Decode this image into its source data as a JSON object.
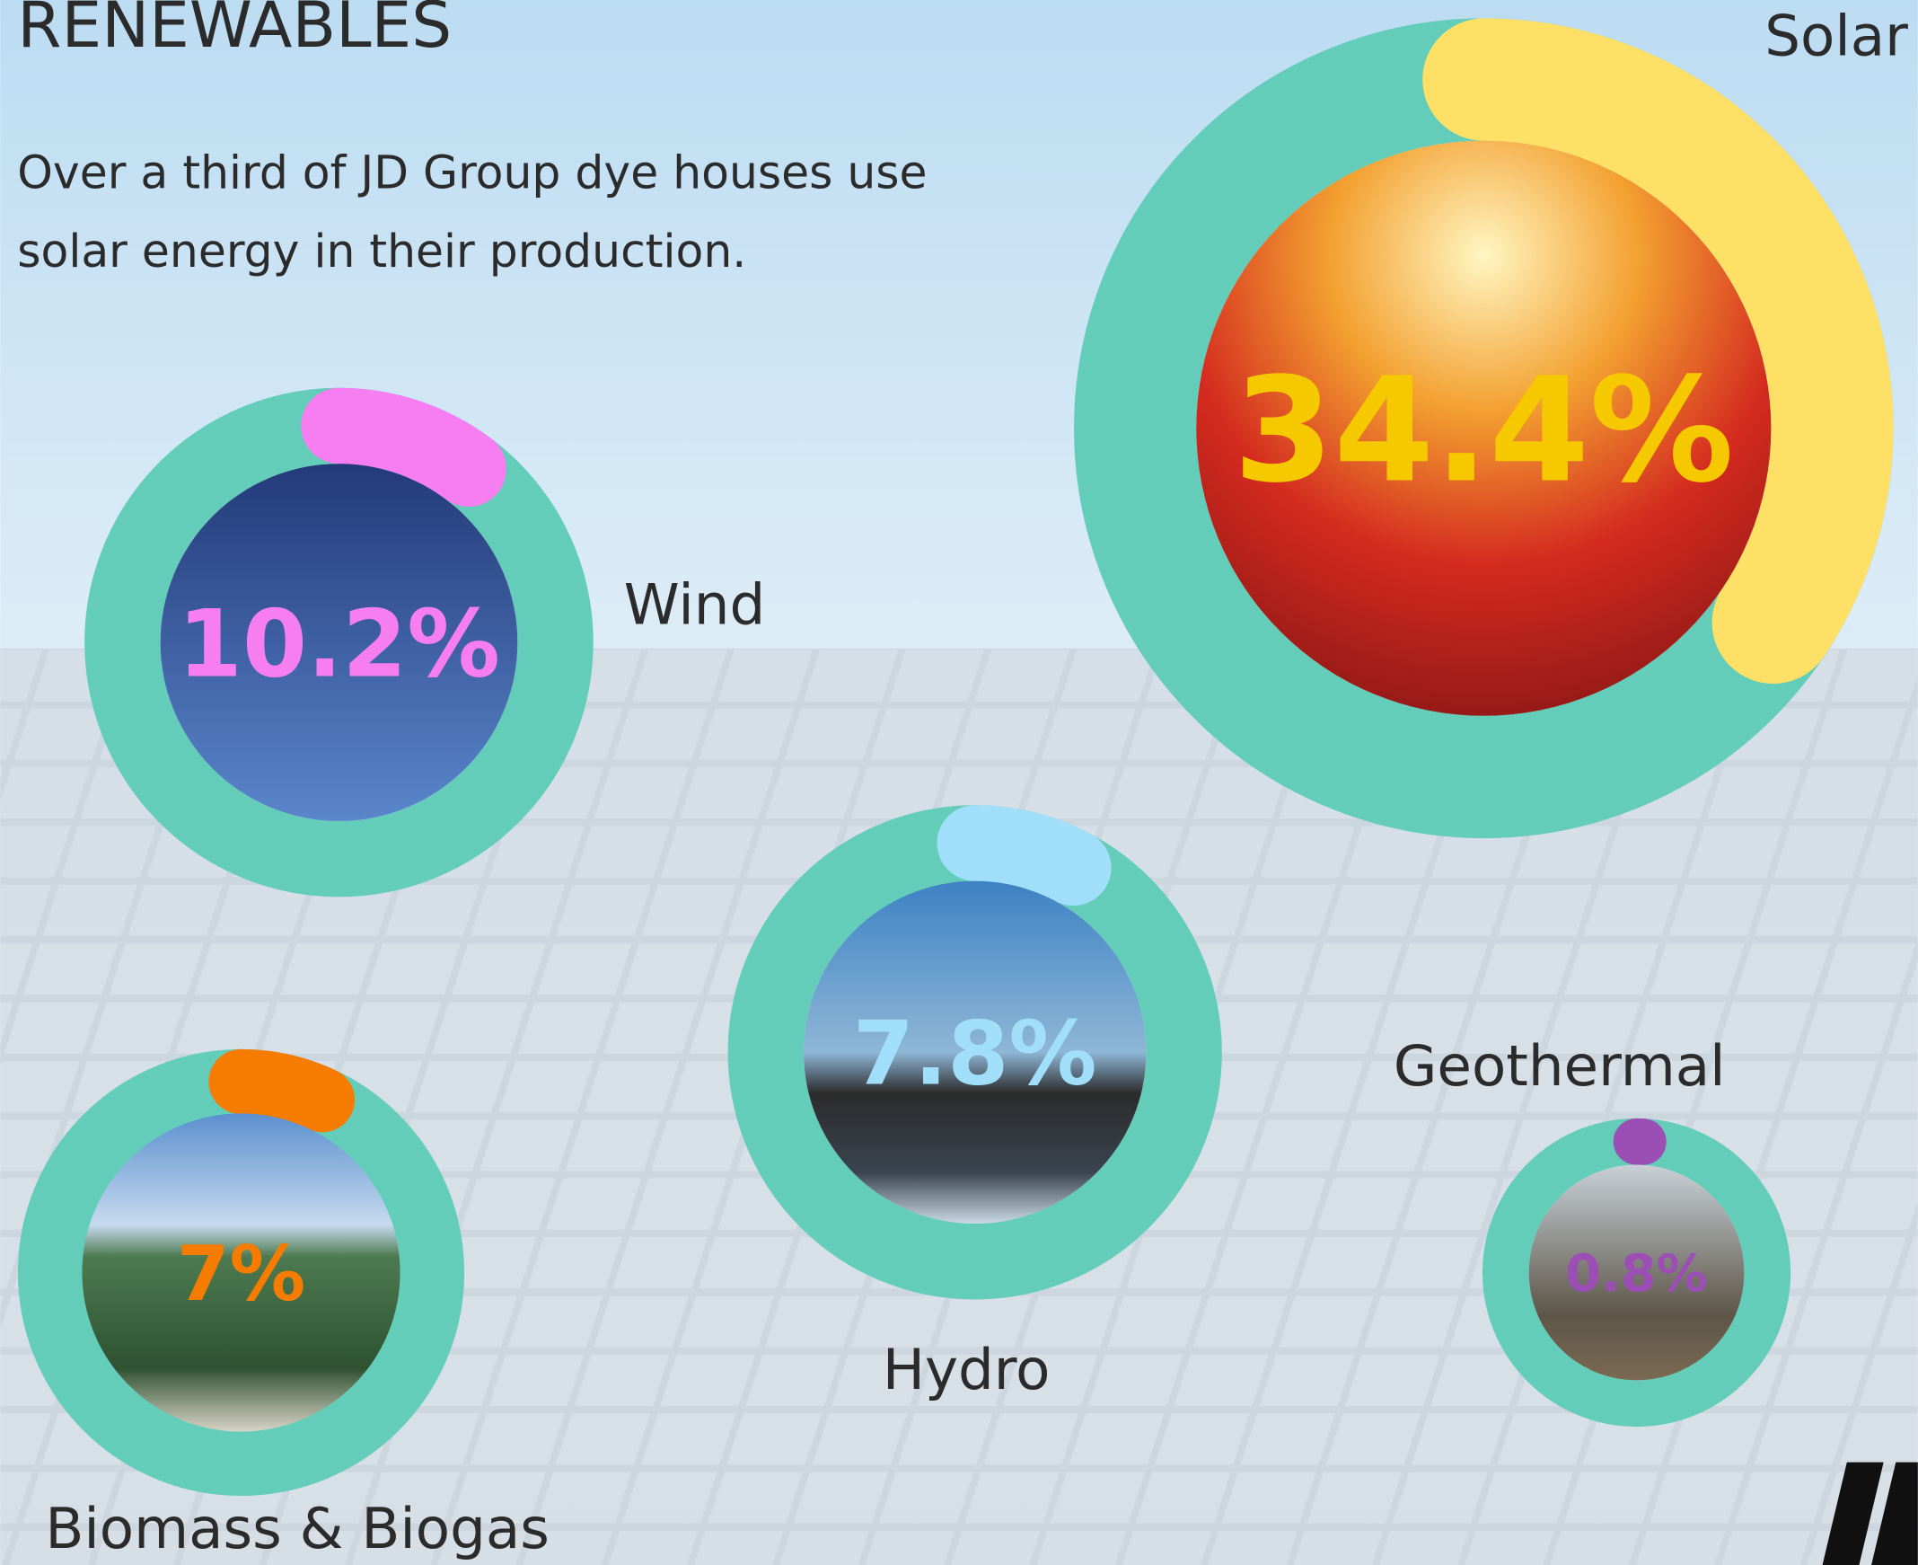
{
  "chart_data": {
    "type": "radial-progress",
    "title": "RENEWABLES",
    "subtitle": [
      "Over a third of JD Group dye houses use",
      "solar energy in their production."
    ],
    "categories": [
      "Solar",
      "Wind",
      "Hydro",
      "Biomass & Biogas",
      "Geothermal"
    ],
    "values": [
      34.4,
      10.2,
      7.8,
      7,
      0.8
    ],
    "value_labels": [
      "34.4%",
      "10.2%",
      "7.8%",
      "7%",
      "0.8%"
    ],
    "colors": [
      "#ffe066",
      "#f77ef0",
      "#a0defa",
      "#f57c00",
      "#9b4fb4"
    ],
    "label_colors": [
      "#f5c800",
      "#f77ef0",
      "#a0defa",
      "#f57c00",
      "#9b4fb4"
    ],
    "ring_color": "#63cdb9",
    "ylim": [
      0,
      100
    ]
  }
}
